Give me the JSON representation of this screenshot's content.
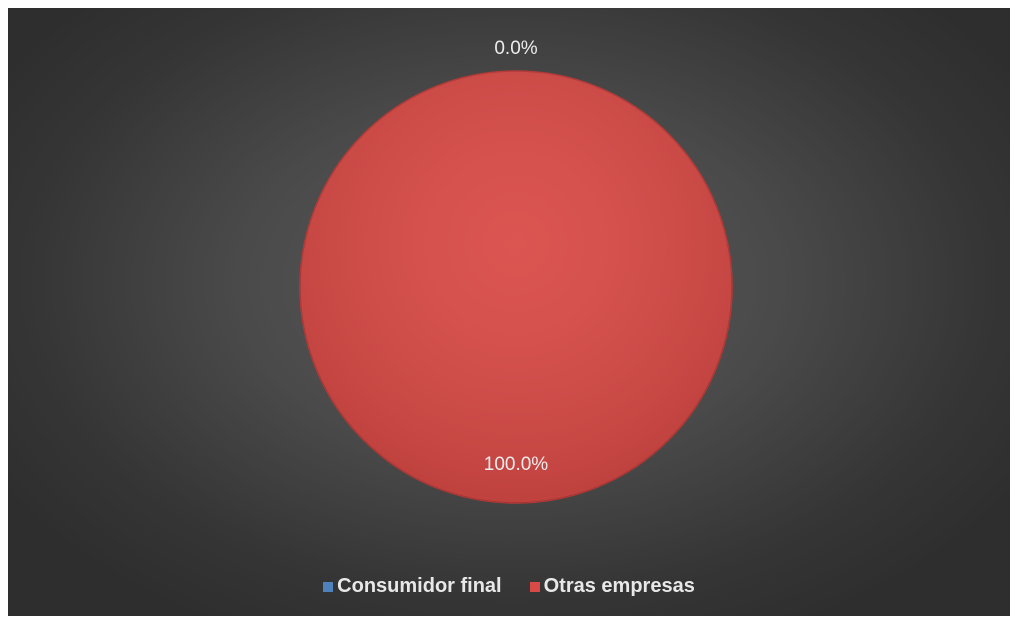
{
  "chart_data": {
    "type": "pie",
    "categories": [
      "Consumidor final",
      "Otras empresas"
    ],
    "values": [
      0.0,
      100.0
    ],
    "data_labels": [
      "0.0%",
      "100.0%"
    ],
    "colors": [
      "#4f81bd",
      "#d94a46"
    ],
    "title": "",
    "legend_position": "bottom",
    "background": "#454545"
  }
}
